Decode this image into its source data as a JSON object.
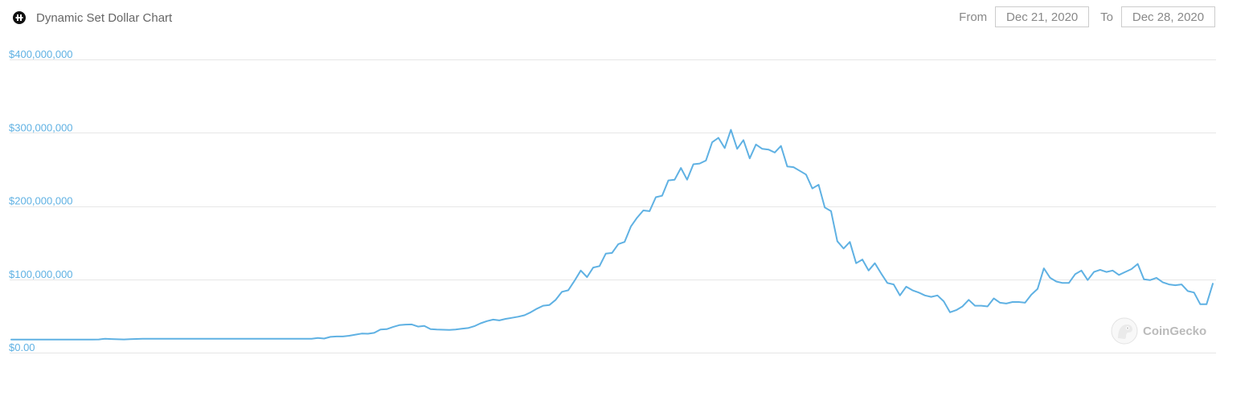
{
  "header": {
    "title": "Dynamic Set Dollar Chart",
    "icon": "dsd-token-icon"
  },
  "range": {
    "from_label": "From",
    "from_value": "Dec 21, 2020",
    "to_label": "To",
    "to_value": "Dec 28, 2020"
  },
  "watermark": {
    "text": "CoinGecko",
    "icon": "coingecko-logo-icon"
  },
  "colors": {
    "line": "#5fb1e3",
    "axis_label": "#5fb1e3",
    "grid": "#e6e6e6",
    "title": "#666666"
  },
  "chart_data": {
    "type": "line",
    "title": "Dynamic Set Dollar Chart",
    "ylim": [
      0,
      400000000
    ],
    "yticks": [
      {
        "value": 0,
        "label": "$0.00"
      },
      {
        "value": 100000000,
        "label": "$100,000,000"
      },
      {
        "value": 200000000,
        "label": "$200,000,000"
      },
      {
        "value": 300000000,
        "label": "$300,000,000"
      },
      {
        "value": 400000000,
        "label": "$400,000,000"
      }
    ],
    "grid": true,
    "legend": "none",
    "series": [
      {
        "values": [
          17903000,
          17907000,
          17907000,
          17909000,
          17910000,
          17912000,
          17913000,
          17912000,
          17911000,
          17906000,
          17903000,
          17902000,
          17902000,
          17904000,
          18000000,
          19000000,
          18500000,
          18200000,
          18000000,
          18300000,
          18600000,
          18800000,
          18900000,
          19000000,
          19000000,
          19000000,
          19000000,
          19000000,
          19000000,
          19000000,
          19000000,
          19000000,
          19000000,
          19000000,
          19000000,
          19000000,
          19000000,
          19000000,
          19000000,
          19000000,
          19000000,
          19000000,
          19000000,
          19000000,
          19000000,
          19000000,
          19000000,
          19000000,
          19000000,
          20000000,
          19200000,
          21500000,
          22000000,
          22000000,
          23000000,
          24500000,
          26000000,
          25800000,
          27000000,
          31500000,
          32000000,
          35000000,
          37500000,
          38300000,
          38500000,
          35500000,
          36500000,
          32000000,
          31500000,
          31200000,
          31000000,
          31500000,
          32500000,
          33500000,
          36000000,
          40000000,
          43000000,
          45000000,
          44000000,
          46000000,
          47500000,
          49000000,
          51000000,
          55000000,
          60000000,
          64000000,
          65000000,
          72000000,
          83000000,
          85000000,
          98000000,
          112000000,
          103000000,
          116000000,
          118000000,
          135000000,
          136000000,
          148000000,
          151000000,
          172000000,
          184000000,
          194000000,
          193000000,
          212000000,
          214000000,
          235000000,
          236000000,
          252000000,
          236000000,
          257000000,
          258000000,
          262000000,
          287000000,
          293000000,
          279000000,
          304000000,
          278000000,
          290000000,
          265000000,
          284000000,
          278000000,
          277000000,
          273000000,
          282000000,
          254000000,
          253000000,
          248000000,
          243000000,
          224000000,
          229000000,
          198000000,
          193000000,
          152000000,
          142000000,
          151000000,
          122000000,
          127000000,
          112000000,
          122000000,
          108000000,
          95000000,
          93000000,
          78000000,
          90000000,
          85000000,
          82000000,
          78000000,
          76000000,
          78000000,
          70000000,
          55000000,
          58000000,
          63000000,
          72000000,
          64000000,
          64000000,
          63000000,
          74000000,
          68000000,
          67000000,
          69000000,
          69000000,
          68000000,
          79000000,
          87000000,
          115000000,
          102000000,
          97000000,
          95000000,
          95000000,
          107000000,
          112000000,
          99000000,
          110000000,
          113000000,
          110000000,
          112000000,
          106000000,
          110000000,
          114000000,
          121000000,
          100000000,
          99000000,
          102000000,
          96000000,
          93000000,
          92000000,
          93000000,
          84000000,
          82000000,
          66000000,
          66000000,
          94000000
        ]
      }
    ]
  }
}
